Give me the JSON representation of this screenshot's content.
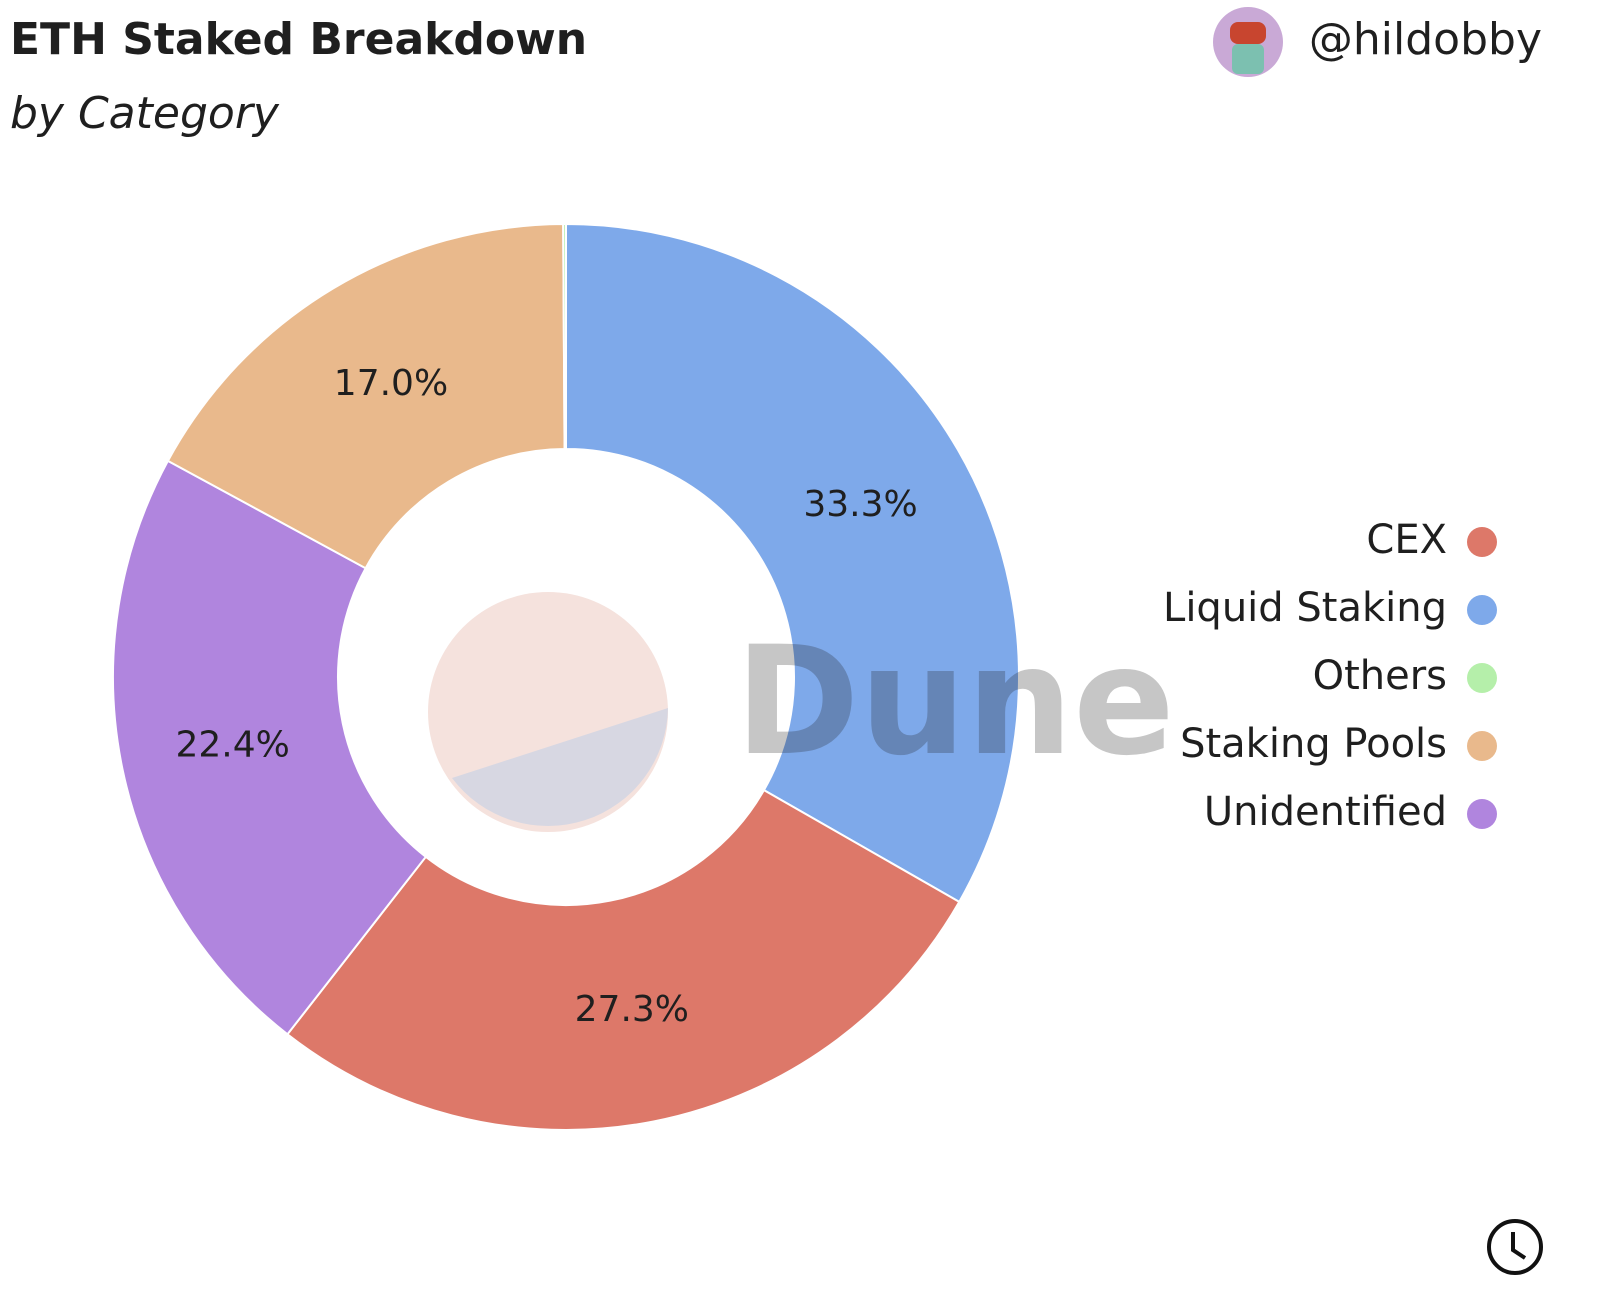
{
  "chart_data": {
    "type": "donut",
    "title": "ETH Staked Breakdown",
    "subtitle": "by Category",
    "author": "@hildobby",
    "watermark": "Dune",
    "categories": [
      "Liquid Staking",
      "CEX",
      "Unidentified",
      "Staking Pools",
      "Others"
    ],
    "values": [
      33.3,
      27.3,
      22.4,
      17.0,
      0.1
    ],
    "value_labels": [
      "33.3%",
      "27.3%",
      "22.4%",
      "17.0%",
      null
    ],
    "colors": [
      "#7ea9ea",
      "#dd7869",
      "#b085de",
      "#e9b98c",
      "#b5efaa"
    ],
    "legend": "right"
  }
}
